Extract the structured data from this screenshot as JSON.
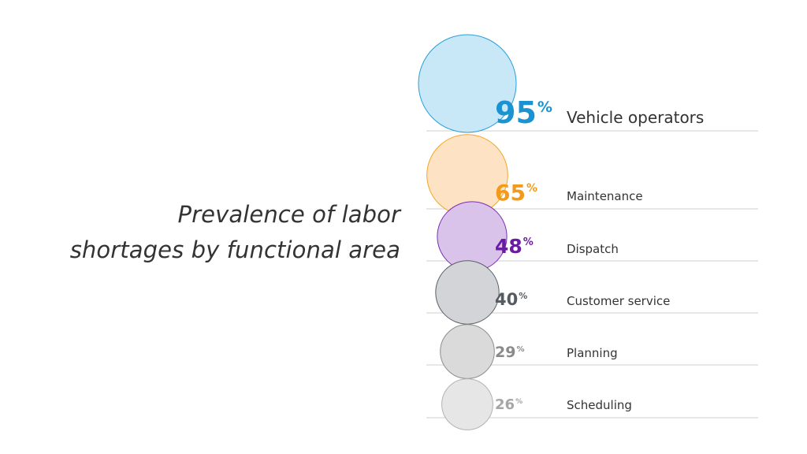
{
  "chart_data": {
    "type": "bubble",
    "title_lines": [
      "Prevalence of labor",
      "shortages by functional area"
    ],
    "unit": "%",
    "categories": [
      "Vehicle operators",
      "Maintenance",
      "Dispatch",
      "Customer service",
      "Planning",
      "Scheduling"
    ],
    "values": [
      95,
      65,
      48,
      40,
      29,
      26
    ],
    "colors": {
      "fills": [
        "#c8e7f7",
        "#fde3c3",
        "#d9c3ea",
        "#d2d4d7",
        "#dadada",
        "#e6e6e6"
      ],
      "strokes": [
        "#2a9fd8",
        "#f5a623",
        "#7a2fb0",
        "#5a6168",
        "#8e8e8e",
        "#b3b3b3"
      ],
      "text": [
        "#1a93d3",
        "#f29a1a",
        "#6a1ca3",
        "#555b61",
        "#8a8a8a",
        "#a6a6a6"
      ],
      "divider": "#cfcfcf",
      "title": "#333333",
      "label": "#333333"
    }
  }
}
